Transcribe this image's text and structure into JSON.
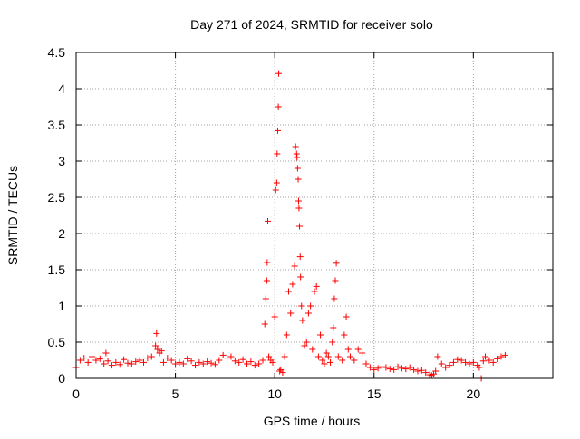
{
  "chart_data": {
    "type": "scatter",
    "title": "Day 271 of 2024, SRMTID for receiver solo",
    "xlabel": "GPS time / hours",
    "ylabel": "SRMTID / TECUs",
    "xlim": [
      0,
      24
    ],
    "ylim": [
      0,
      4.5
    ],
    "xticks": [
      0,
      5,
      10,
      15,
      20
    ],
    "yticks": [
      0,
      0.5,
      1,
      1.5,
      2,
      2.5,
      3,
      3.5,
      4,
      4.5
    ],
    "xtick_labels": [
      "0",
      "5",
      "10",
      "15",
      "20"
    ],
    "ytick_labels": [
      "0",
      "0.5",
      "1",
      "1.5",
      "2",
      "2.5",
      "3",
      "3.5",
      "4",
      "4.5"
    ],
    "grid": true,
    "marker": "+",
    "color": "#ff0000",
    "series": [
      {
        "name": "SRMTID",
        "x": [
          0.0,
          0.2,
          0.4,
          0.6,
          0.8,
          1.0,
          1.2,
          1.4,
          1.5,
          1.6,
          1.8,
          2.0,
          2.2,
          2.4,
          2.6,
          2.8,
          3.0,
          3.2,
          3.4,
          3.6,
          3.8,
          4.0,
          4.05,
          4.1,
          4.2,
          4.3,
          4.4,
          4.6,
          4.8,
          5.0,
          5.2,
          5.4,
          5.6,
          5.8,
          6.0,
          6.2,
          6.4,
          6.6,
          6.8,
          7.0,
          7.2,
          7.4,
          7.6,
          7.8,
          8.0,
          8.2,
          8.4,
          8.6,
          8.8,
          9.0,
          9.2,
          9.4,
          9.5,
          9.55,
          9.6,
          9.62,
          9.65,
          9.7,
          9.8,
          9.9,
          10.0,
          10.05,
          10.1,
          10.12,
          10.15,
          10.18,
          10.2,
          10.25,
          10.3,
          10.4,
          10.5,
          10.6,
          10.7,
          10.8,
          10.9,
          11.0,
          11.05,
          11.1,
          11.12,
          11.15,
          11.18,
          11.2,
          11.22,
          11.25,
          11.28,
          11.3,
          11.35,
          11.4,
          11.5,
          11.6,
          11.7,
          11.8,
          11.9,
          12.0,
          12.1,
          12.2,
          12.3,
          12.4,
          12.5,
          12.6,
          12.7,
          12.8,
          12.9,
          12.95,
          13.0,
          13.05,
          13.1,
          13.2,
          13.4,
          13.5,
          13.6,
          13.7,
          13.8,
          14.0,
          14.2,
          14.4,
          14.6,
          14.8,
          15.0,
          15.2,
          15.4,
          15.6,
          15.8,
          16.0,
          16.2,
          16.4,
          16.6,
          16.8,
          17.0,
          17.2,
          17.4,
          17.6,
          17.8,
          17.9,
          18.0,
          18.1,
          18.2,
          18.4,
          18.6,
          18.8,
          19.0,
          19.2,
          19.4,
          19.6,
          19.8,
          20.0,
          20.2,
          20.3,
          20.4,
          20.5,
          20.6,
          20.8,
          21.0,
          21.2,
          21.4,
          21.6
        ],
        "y": [
          0.15,
          0.25,
          0.28,
          0.22,
          0.3,
          0.25,
          0.27,
          0.2,
          0.35,
          0.24,
          0.18,
          0.22,
          0.19,
          0.26,
          0.21,
          0.2,
          0.23,
          0.25,
          0.22,
          0.28,
          0.3,
          0.45,
          0.62,
          0.4,
          0.35,
          0.38,
          0.22,
          0.28,
          0.25,
          0.2,
          0.22,
          0.2,
          0.27,
          0.24,
          0.18,
          0.22,
          0.2,
          0.23,
          0.21,
          0.19,
          0.25,
          0.32,
          0.28,
          0.3,
          0.24,
          0.22,
          0.26,
          0.2,
          0.23,
          0.18,
          0.2,
          0.25,
          0.75,
          1.1,
          1.35,
          1.6,
          2.17,
          0.3,
          0.25,
          0.22,
          0.85,
          2.6,
          2.7,
          3.1,
          3.42,
          3.75,
          4.21,
          0.1,
          0.12,
          0.08,
          0.3,
          0.6,
          1.2,
          0.9,
          1.3,
          1.55,
          3.2,
          3.1,
          3.05,
          2.9,
          2.75,
          2.45,
          2.35,
          2.1,
          1.68,
          1.4,
          1.0,
          0.8,
          0.45,
          0.5,
          0.9,
          1.0,
          0.4,
          1.2,
          1.27,
          0.3,
          0.6,
          0.25,
          0.2,
          0.35,
          0.3,
          0.22,
          0.5,
          0.7,
          1.1,
          1.35,
          1.59,
          0.3,
          0.25,
          0.6,
          0.85,
          0.4,
          0.3,
          0.25,
          0.4,
          0.35,
          0.2,
          0.15,
          0.12,
          0.14,
          0.16,
          0.15,
          0.13,
          0.12,
          0.16,
          0.14,
          0.13,
          0.15,
          0.12,
          0.1,
          0.11,
          0.08,
          0.05,
          0.04,
          0.06,
          0.1,
          0.3,
          0.2,
          0.15,
          0.18,
          0.22,
          0.26,
          0.25,
          0.22,
          0.2,
          0.22,
          0.18,
          0.15,
          0.0,
          0.24,
          0.3,
          0.25,
          0.22,
          0.27,
          0.3,
          0.32
        ]
      }
    ]
  }
}
